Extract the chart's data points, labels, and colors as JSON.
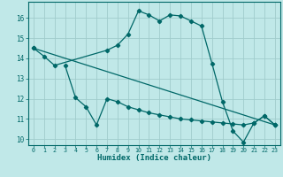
{
  "title": "",
  "xlabel": "Humidex (Indice chaleur)",
  "bg_color": "#c0e8e8",
  "grid_color": "#a0cccc",
  "line_color": "#006868",
  "xlim": [
    -0.5,
    23.5
  ],
  "ylim": [
    9.7,
    16.8
  ],
  "yticks": [
    10,
    11,
    12,
    13,
    14,
    15,
    16
  ],
  "xticks": [
    0,
    1,
    2,
    3,
    4,
    5,
    6,
    7,
    8,
    9,
    10,
    11,
    12,
    13,
    14,
    15,
    16,
    17,
    18,
    19,
    20,
    21,
    22,
    23
  ],
  "line1_x": [
    0,
    1,
    2,
    7,
    8,
    9,
    10,
    11,
    12,
    13,
    14,
    15,
    16,
    17,
    18,
    19,
    20,
    21,
    22,
    23
  ],
  "line1_y": [
    14.5,
    14.1,
    13.65,
    14.4,
    14.65,
    15.2,
    16.35,
    16.15,
    15.85,
    16.15,
    16.1,
    15.85,
    15.6,
    13.75,
    11.85,
    10.4,
    9.85,
    10.8,
    11.15,
    10.7
  ],
  "line2_x": [
    0,
    23
  ],
  "line2_y": [
    14.5,
    10.7
  ],
  "line3_x": [
    3,
    4,
    5,
    6,
    7,
    8,
    9,
    10,
    11,
    12,
    13,
    14,
    15,
    16,
    17,
    18,
    19,
    20,
    21,
    22,
    23
  ],
  "line3_y": [
    13.65,
    12.05,
    11.6,
    10.7,
    12.0,
    11.85,
    11.6,
    11.45,
    11.3,
    11.2,
    11.1,
    11.0,
    10.95,
    10.9,
    10.85,
    10.8,
    10.75,
    10.7,
    10.8,
    11.15,
    10.7
  ]
}
